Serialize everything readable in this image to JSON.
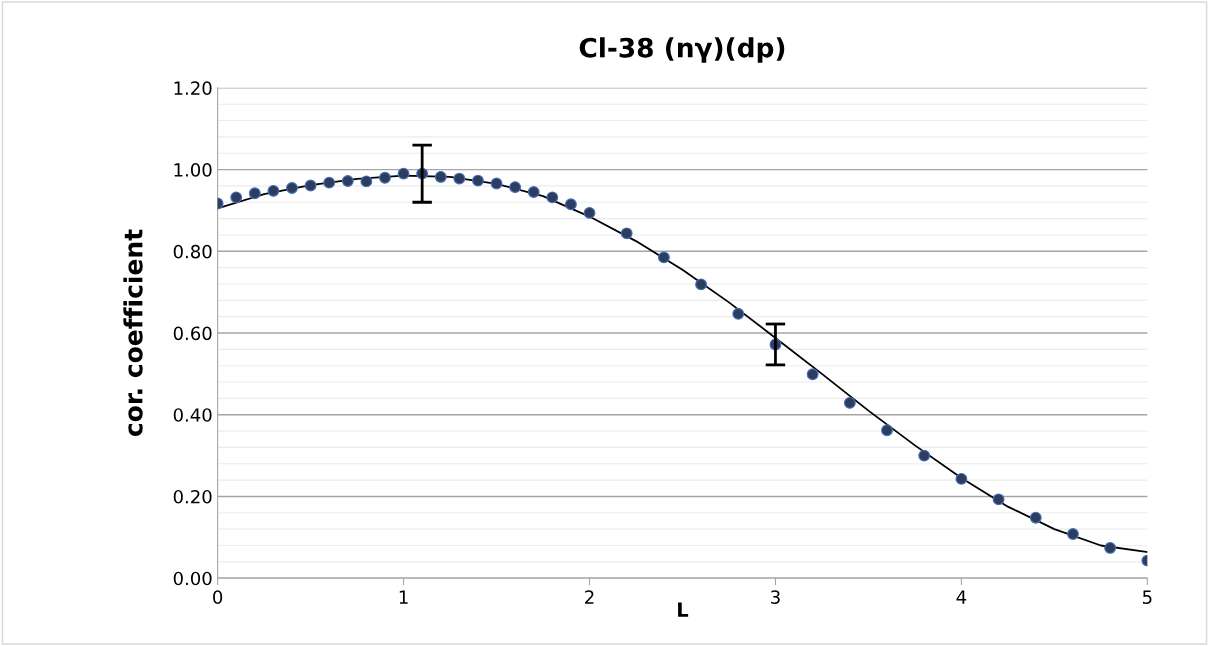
{
  "chart_data": {
    "type": "scatter",
    "title": "Cl-38 (nγ)(dp)",
    "xlabel": "L",
    "ylabel": "cor. coefficient",
    "xlim": [
      0,
      5
    ],
    "xticks": [
      0,
      1,
      2,
      3,
      4,
      5
    ],
    "ylim": [
      0,
      1.2
    ],
    "yticks": [
      {
        "value": 0,
        "label": "0.00"
      },
      {
        "value": 0.2,
        "label": "0.20"
      },
      {
        "value": 0.4,
        "label": "0.40"
      },
      {
        "value": 0.6,
        "label": "0.60"
      },
      {
        "value": 0.8,
        "label": "0.80"
      },
      {
        "value": 1.0,
        "label": "1.00"
      },
      {
        "value": 1.2,
        "label": "1.20"
      }
    ],
    "grid": "y",
    "legend": false,
    "series": [
      {
        "marker": "circle",
        "color": "#2f3d5c",
        "x": [
          0,
          0.1,
          0.2,
          0.3,
          0.4,
          0.5,
          0.6,
          0.7,
          0.8,
          0.9,
          1.0,
          1.1,
          1.2,
          1.3,
          1.4,
          1.5,
          1.6,
          1.7,
          1.8,
          1.9,
          2.0,
          2.2,
          2.4,
          2.6,
          2.8,
          3.0,
          3.2,
          3.4,
          3.6,
          3.8,
          4.0,
          4.2,
          4.4,
          4.6,
          4.8,
          5.0
        ],
        "values": [
          0.917,
          0.932,
          0.942,
          0.948,
          0.955,
          0.961,
          0.968,
          0.972,
          0.971,
          0.98,
          0.99,
          0.99,
          0.982,
          0.978,
          0.973,
          0.966,
          0.957,
          0.945,
          0.932,
          0.915,
          0.894,
          0.844,
          0.785,
          0.719,
          0.647,
          0.572,
          0.499,
          0.429,
          0.362,
          0.3,
          0.243,
          0.193,
          0.148,
          0.108,
          0.074,
          0.043
        ],
        "errors": [
          null,
          null,
          null,
          null,
          null,
          null,
          null,
          null,
          null,
          null,
          null,
          0.07,
          null,
          null,
          null,
          null,
          null,
          null,
          null,
          null,
          null,
          null,
          null,
          null,
          null,
          0.05,
          null,
          null,
          null,
          null,
          null,
          null,
          null,
          null,
          null,
          null
        ]
      },
      {
        "type": "line",
        "color": "#000000",
        "marker": "none",
        "line_style": "solid",
        "x": [
          0,
          0.25,
          0.5,
          0.75,
          1.0,
          1.25,
          1.5,
          1.75,
          2.0,
          2.25,
          2.5,
          2.75,
          3.0,
          3.25,
          3.5,
          3.75,
          4.0,
          4.25,
          4.5,
          4.75,
          5.0
        ],
        "values": [
          0.905,
          0.94,
          0.962,
          0.977,
          0.985,
          0.982,
          0.965,
          0.935,
          0.885,
          0.825,
          0.755,
          0.675,
          0.588,
          0.5,
          0.41,
          0.325,
          0.245,
          0.175,
          0.12,
          0.08,
          0.064
        ]
      }
    ]
  }
}
